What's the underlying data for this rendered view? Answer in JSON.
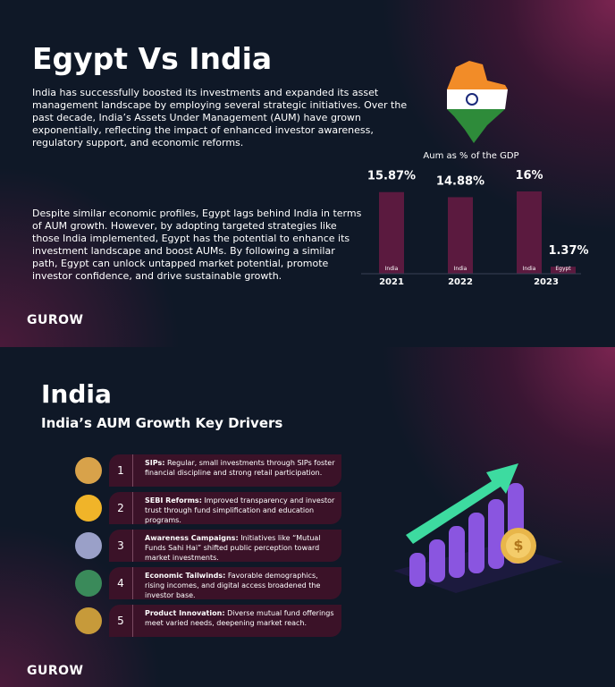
{
  "header": {
    "title": "Egypt Vs India",
    "intro": "India has successfully boosted its investments and expanded its asset management landscape by employing several strategic initiatives. Over the past decade, India’s Assets Under Management (AUM) have grown exponentially, reflecting the impact of enhanced investor awareness, regulatory support, and economic reforms.",
    "body": "Despite similar economic profiles, Egypt lags behind India in terms of AUM growth. However, by adopting targeted strategies like those India implemented, Egypt has the potential to enhance its investment landscape and boost AUMs. By following a similar path, Egypt can unlock untapped market potential, promote investor confidence, and drive sustainable growth.",
    "brand": "GUROW"
  },
  "chart_data": {
    "type": "bar",
    "title": "Aum as % of the GDP",
    "categories": [
      "2021",
      "2022",
      "2023"
    ],
    "series": [
      {
        "name": "India",
        "color": "#5b1a3f",
        "values": [
          15.87,
          14.88,
          16
        ],
        "value_labels": [
          "15.87%",
          "14.88%",
          "16%"
        ]
      },
      {
        "name": "Egypt",
        "color": "#5b1a3f",
        "values": [
          null,
          null,
          1.37
        ],
        "value_labels": [
          null,
          null,
          "1.37%"
        ]
      }
    ]
  },
  "section": {
    "title": "India",
    "subtitle": "India’s AUM Growth Key Drivers",
    "items": [
      {
        "number": 1,
        "label": "SIPs:",
        "text": "Regular, small investments through SIPs foster financial discipline and strong retail participation."
      },
      {
        "number": 2,
        "label": "SEBI Reforms:",
        "text": "Improved transparency and investor trust through fund simplification and education programs."
      },
      {
        "number": 3,
        "label": "Awareness Campaigns:",
        "text": "Initiatives like “Mutual Funds Sahi Hai” shifted public perception toward market investments."
      },
      {
        "number": 4,
        "label": "Economic Tailwinds:",
        "text": "Favorable demographics, rising incomes, and digital access broadened the investor base."
      },
      {
        "number": 5,
        "label": "Product Innovation:",
        "text": "Diverse mutual fund offerings meet varied needs, deepening market reach."
      }
    ],
    "brand": "GUROW"
  }
}
